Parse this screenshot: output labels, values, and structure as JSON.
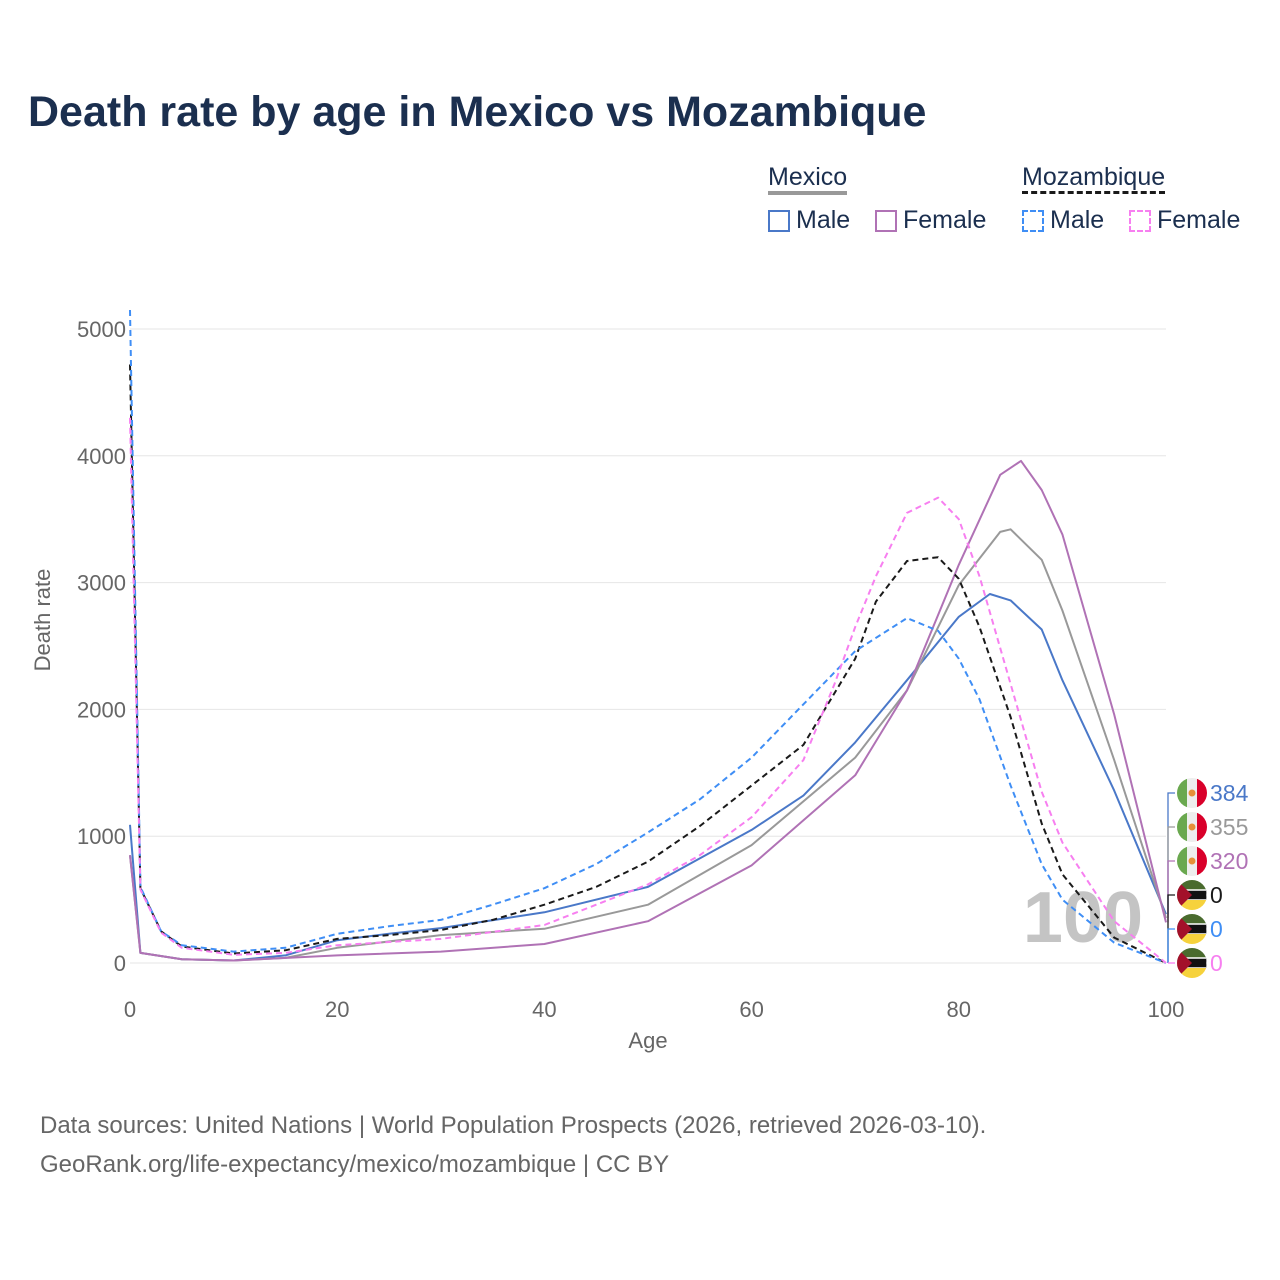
{
  "title": "Death rate by age in Mexico vs Mozambique",
  "legend": {
    "groups": [
      {
        "name": "Mexico",
        "items": [
          "Male",
          "Female"
        ]
      },
      {
        "name": "Mozambique",
        "items": [
          "Male",
          "Female"
        ]
      }
    ]
  },
  "watermark": "100",
  "source_line1": "Data sources: United Nations | World Population Prospects (2026, retrieved 2026-03-10).",
  "source_line2": "GeoRank.org/life-expectancy/mexico/mozambique | CC BY",
  "chart_data": {
    "type": "line",
    "title": "Death rate by age in Mexico vs Mozambique",
    "xlabel": "Age",
    "ylabel": "Death rate",
    "xlim": [
      0,
      100
    ],
    "ylim": [
      0,
      5000
    ],
    "xticks": [
      "0",
      "20",
      "40",
      "60",
      "80",
      "100"
    ],
    "yticks": [
      "0",
      "1000",
      "2000",
      "3000",
      "4000",
      "5000"
    ],
    "grid": true,
    "series": [
      {
        "name": "Mexico Male",
        "color": "#4a78c8",
        "dash": false,
        "end_label": "384",
        "flag": "mexico",
        "x": [
          0,
          1,
          5,
          10,
          15,
          20,
          25,
          30,
          40,
          50,
          60,
          65,
          70,
          75,
          80,
          83,
          85,
          88,
          90,
          95,
          100
        ],
        "y": [
          1090,
          80,
          30,
          20,
          60,
          180,
          230,
          275,
          400,
          600,
          1050,
          1320,
          1740,
          2230,
          2730,
          2910,
          2860,
          2630,
          2230,
          1360,
          384
        ]
      },
      {
        "name": "Mexico Total",
        "color": "#999999",
        "dash": false,
        "end_label": "355",
        "flag": "mexico",
        "x": [
          0,
          1,
          5,
          10,
          15,
          20,
          30,
          40,
          50,
          60,
          70,
          75,
          80,
          84,
          85,
          88,
          90,
          95,
          100
        ],
        "y": [
          850,
          80,
          30,
          20,
          40,
          120,
          220,
          270,
          460,
          930,
          1620,
          2150,
          2980,
          3400,
          3420,
          3180,
          2780,
          1600,
          355
        ]
      },
      {
        "name": "Mexico Female",
        "color": "#b072b5",
        "dash": false,
        "end_label": "320",
        "flag": "mexico",
        "x": [
          0,
          1,
          5,
          10,
          20,
          30,
          40,
          50,
          60,
          70,
          75,
          80,
          84,
          86,
          88,
          90,
          95,
          100
        ],
        "y": [
          850,
          80,
          30,
          20,
          60,
          90,
          150,
          330,
          770,
          1480,
          2150,
          3140,
          3850,
          3960,
          3730,
          3380,
          1960,
          320
        ]
      },
      {
        "name": "Mozambique Total",
        "color": "#1a1a1a",
        "dash": true,
        "end_label": "0",
        "flag": "mozambique",
        "x": [
          0,
          1,
          3,
          5,
          10,
          15,
          20,
          25,
          30,
          35,
          40,
          45,
          50,
          55,
          60,
          65,
          70,
          72,
          75,
          78,
          80,
          82,
          85,
          88,
          90,
          95,
          100
        ],
        "y": [
          4720,
          590,
          250,
          130,
          75,
          100,
          190,
          220,
          260,
          340,
          460,
          600,
          800,
          1080,
          1400,
          1720,
          2400,
          2850,
          3170,
          3200,
          3030,
          2650,
          1940,
          1100,
          700,
          200,
          0
        ]
      },
      {
        "name": "Mozambique Male",
        "color": "#3f8ef5",
        "dash": true,
        "end_label": "0",
        "flag": "mozambique",
        "x": [
          0,
          1,
          3,
          5,
          10,
          15,
          20,
          25,
          30,
          35,
          40,
          45,
          50,
          55,
          60,
          65,
          70,
          75,
          78,
          80,
          82,
          85,
          88,
          90,
          95,
          100
        ],
        "y": [
          5150,
          600,
          250,
          140,
          90,
          120,
          230,
          290,
          340,
          460,
          590,
          780,
          1030,
          1290,
          1620,
          2040,
          2460,
          2720,
          2620,
          2400,
          2080,
          1400,
          780,
          500,
          160,
          0
        ]
      },
      {
        "name": "Mozambique Female",
        "color": "#f77ff0",
        "dash": true,
        "end_label": "0",
        "flag": "mozambique",
        "x": [
          0,
          1,
          3,
          5,
          10,
          15,
          20,
          30,
          40,
          50,
          55,
          60,
          65,
          68,
          70,
          72,
          75,
          78,
          80,
          82,
          85,
          88,
          90,
          95,
          100
        ],
        "y": [
          4300,
          580,
          240,
          120,
          65,
          80,
          140,
          190,
          300,
          620,
          850,
          1150,
          1600,
          2200,
          2650,
          3050,
          3550,
          3670,
          3500,
          3050,
          2200,
          1350,
          950,
          330,
          0
        ]
      }
    ]
  }
}
